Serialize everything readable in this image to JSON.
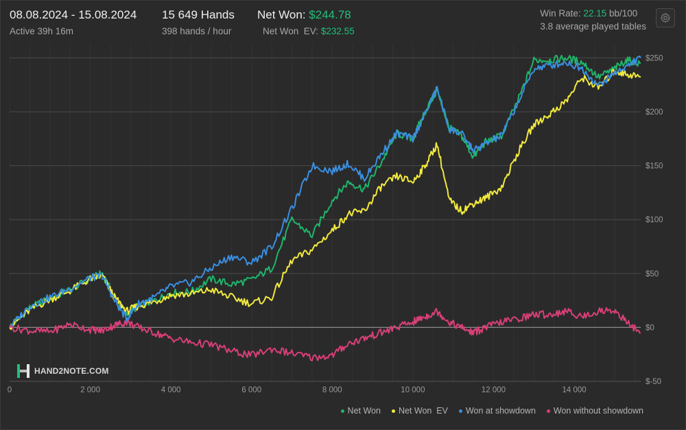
{
  "header": {
    "date_range": "08.08.2024 - 15.08.2024",
    "active": "Active 39h 16m",
    "hands": "15 649 Hands",
    "hands_per_hour": "398 hands / hour",
    "net_won_label": "Net Won:",
    "net_won_value": "$244.78",
    "net_won_ev_label": "Net Won  EV:",
    "net_won_ev_value": "$232.55",
    "win_rate_label": "Win Rate:",
    "win_rate_value": "22.15",
    "win_rate_unit": "bb/100",
    "avg_tables": "3.8 average played tables"
  },
  "logo_text": "HAND2NOTE.COM",
  "settings_icon": "gear-icon",
  "chart_data": {
    "type": "line",
    "x_ticks": [
      0,
      2000,
      4000,
      6000,
      8000,
      10000,
      12000,
      14000
    ],
    "x_tick_labels": [
      "0",
      "2 000",
      "4 000",
      "6 000",
      "8 000",
      "10 000",
      "12 000",
      "14 000"
    ],
    "y_ticks": [
      -50,
      0,
      50,
      100,
      150,
      200,
      250
    ],
    "y_tick_labels": [
      "$-50",
      "$0",
      "$50",
      "$100",
      "$150",
      "$200",
      "$250"
    ],
    "xlim": [
      0,
      15649
    ],
    "ylim": [
      -50,
      263
    ],
    "grid": true,
    "legend_position": "bottom-right",
    "x": [
      0,
      500,
      1000,
      1500,
      2000,
      2300,
      2600,
      2900,
      3200,
      3600,
      4000,
      4500,
      5000,
      5500,
      6000,
      6500,
      7000,
      7500,
      8000,
      8400,
      8800,
      9200,
      9600,
      10000,
      10300,
      10600,
      10900,
      11200,
      11500,
      11800,
      12200,
      12600,
      13000,
      13400,
      13800,
      14200,
      14600,
      15000,
      15300,
      15649
    ],
    "series": [
      {
        "name": "Net Won",
        "color": "#1fb56b",
        "values": [
          0,
          18,
          27,
          35,
          45,
          50,
          28,
          12,
          20,
          25,
          32,
          33,
          45,
          40,
          44,
          55,
          100,
          85,
          118,
          135,
          128,
          152,
          180,
          175,
          200,
          220,
          185,
          178,
          158,
          172,
          178,
          210,
          248,
          248,
          250,
          246,
          232,
          240,
          248,
          244.78
        ]
      },
      {
        "name": "Net Won  EV",
        "color": "#f2ea3d",
        "values": [
          0,
          16,
          26,
          34,
          45,
          48,
          28,
          15,
          20,
          24,
          30,
          31,
          35,
          28,
          22,
          28,
          62,
          72,
          90,
          105,
          108,
          130,
          140,
          135,
          150,
          170,
          118,
          108,
          115,
          120,
          130,
          162,
          188,
          198,
          210,
          232,
          222,
          238,
          235,
          232.55
        ]
      },
      {
        "name": "Won at showdown",
        "color": "#3b8fe0",
        "values": [
          0,
          20,
          28,
          36,
          46,
          48,
          25,
          8,
          22,
          28,
          38,
          42,
          55,
          66,
          60,
          75,
          110,
          150,
          145,
          152,
          138,
          160,
          180,
          175,
          198,
          222,
          184,
          180,
          164,
          170,
          178,
          208,
          240,
          243,
          246,
          240,
          224,
          236,
          242,
          250
        ]
      },
      {
        "name": "Won without showdown",
        "color": "#d93f78",
        "values": [
          0,
          -3,
          -4,
          3,
          -2,
          -3,
          2,
          5,
          0,
          -5,
          -10,
          -14,
          -16,
          -22,
          -26,
          -20,
          -24,
          -28,
          -26,
          -15,
          -10,
          -5,
          0,
          5,
          10,
          15,
          5,
          0,
          -5,
          0,
          5,
          8,
          12,
          12,
          15,
          10,
          15,
          16,
          5,
          -5
        ]
      }
    ]
  },
  "legend": [
    {
      "label": "Net Won",
      "color": "#1fb56b"
    },
    {
      "label": "Net Won  EV",
      "color": "#f2ea3d"
    },
    {
      "label": "Won at showdown",
      "color": "#3b8fe0"
    },
    {
      "label": "Won without showdown",
      "color": "#d93f78"
    }
  ]
}
